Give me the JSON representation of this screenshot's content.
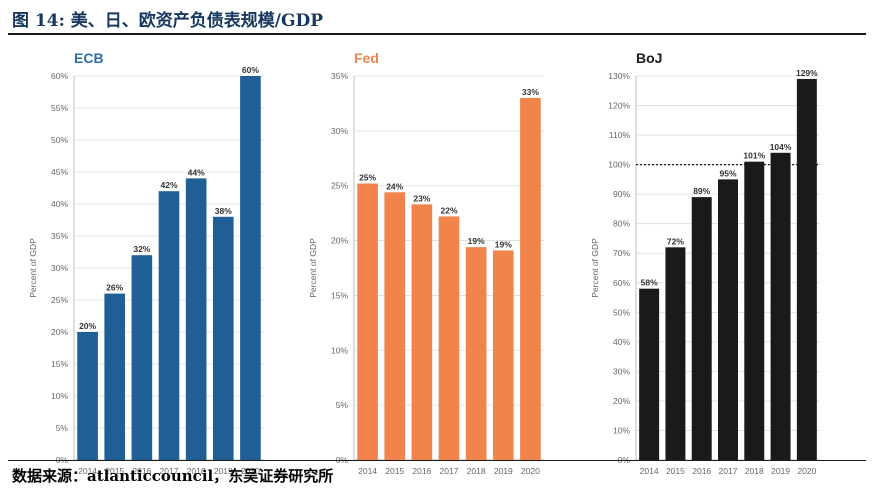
{
  "figure": {
    "title": "图 14:  美、日、欧资产负债表规模/GDP",
    "source": "数据来源：atlanticcouncil，东吴证券研究所"
  },
  "chart_data": [
    {
      "type": "bar",
      "title": "ECB",
      "title_color": "#2D6FA6",
      "bar_color": "#1F5F96",
      "categories": [
        "2014",
        "2015",
        "2016",
        "2017",
        "2018",
        "2019",
        "2020"
      ],
      "values": [
        20,
        26,
        32,
        42,
        44,
        38,
        60
      ],
      "value_labels": [
        "20%",
        "26%",
        "32%",
        "42%",
        "44%",
        "38%",
        "60%"
      ],
      "ylabel": "Percent of GDP",
      "ylim": [
        0,
        60
      ],
      "yticks": [
        "0%",
        "5%",
        "10%",
        "15%",
        "20%",
        "25%",
        "30%",
        "35%",
        "40%",
        "45%",
        "50%",
        "55%",
        "60%"
      ],
      "grid": true
    },
    {
      "type": "bar",
      "title": "Fed",
      "title_color": "#F0844A",
      "bar_color": "#F0844A",
      "categories": [
        "2014",
        "2015",
        "2016",
        "2017",
        "2018",
        "2019",
        "2020"
      ],
      "values": [
        25.2,
        24.4,
        23.3,
        22.2,
        19.4,
        19.1,
        33.0
      ],
      "value_labels": [
        "25%",
        "24%",
        "23%",
        "22%",
        "19%",
        "19%",
        "33%"
      ],
      "ylabel": "Percent of GDP",
      "ylim": [
        0,
        35
      ],
      "yticks": [
        "0%",
        "5%",
        "10%",
        "15%",
        "20%",
        "25%",
        "30%",
        "35%"
      ],
      "grid": true
    },
    {
      "type": "bar",
      "title": "BoJ",
      "title_color": "#1a1a1a",
      "bar_color": "#1a1a1a",
      "categories": [
        "2014",
        "2015",
        "2016",
        "2017",
        "2018",
        "2019",
        "2020"
      ],
      "values": [
        58,
        72,
        89,
        95,
        101,
        104,
        129
      ],
      "value_labels": [
        "58%",
        "72%",
        "89%",
        "95%",
        "101%",
        "104%",
        "129%"
      ],
      "ylabel": "Percent of GDP",
      "ylim": [
        0,
        130
      ],
      "yticks": [
        "0%",
        "10%",
        "20%",
        "30%",
        "40%",
        "50%",
        "60%",
        "70%",
        "80%",
        "90%",
        "100%",
        "110%",
        "120%",
        "130%"
      ],
      "grid": true,
      "reference_line": 100
    }
  ]
}
